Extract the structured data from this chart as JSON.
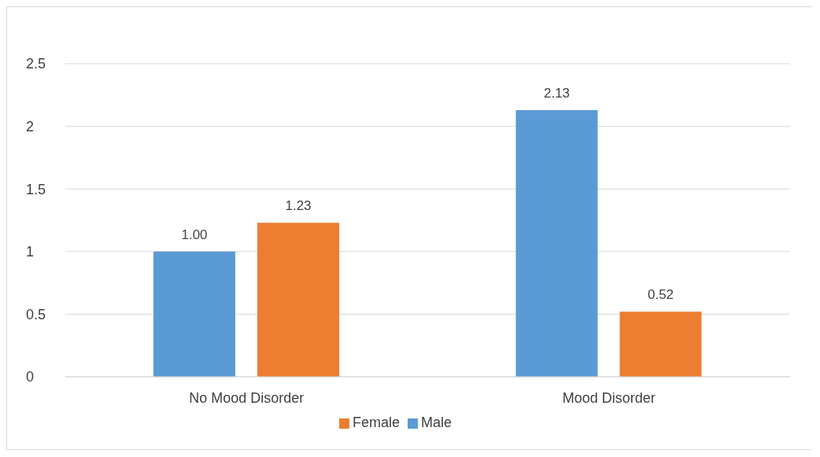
{
  "chart_data": {
    "type": "bar",
    "categories": [
      "No Mood Disorder",
      "Mood Disorder"
    ],
    "series": [
      {
        "name": "Male",
        "color": "#5b9bd5",
        "values": [
          1.0,
          2.13
        ],
        "value_labels": [
          "1.00",
          "2.13"
        ]
      },
      {
        "name": "Female",
        "color": "#ed7d31",
        "values": [
          1.23,
          0.52
        ],
        "value_labels": [
          "1.23",
          "0.52"
        ]
      }
    ],
    "ylim": [
      0,
      2.5
    ],
    "yticks": [
      0,
      0.5,
      1,
      1.5,
      2,
      2.5
    ],
    "grid": "y",
    "legend": "bottom"
  }
}
